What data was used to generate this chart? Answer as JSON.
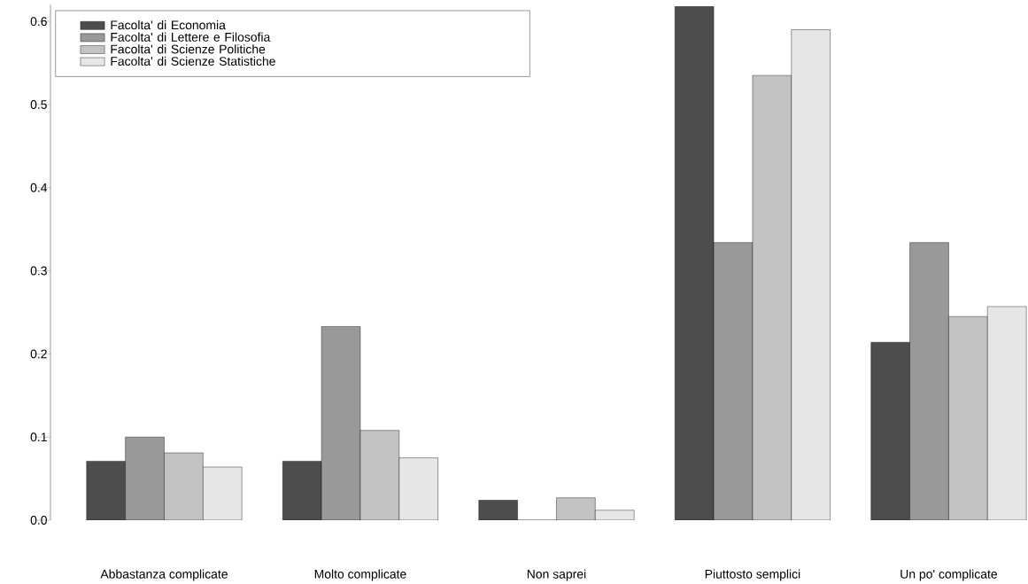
{
  "chart_data": {
    "type": "bar",
    "categories": [
      "Abbastanza complicate",
      "Molto complicate",
      "Non saprei",
      "Piuttosto semplici",
      "Un po' complicate"
    ],
    "series": [
      {
        "name": "Facolta' di Economia",
        "color": "#4d4d4d",
        "values": [
          0.071,
          0.071,
          0.024,
          0.618,
          0.214
        ]
      },
      {
        "name": "Facolta' di Lettere e Filosofia",
        "color": "#999999",
        "values": [
          0.1,
          0.233,
          0,
          0.334,
          0.334
        ]
      },
      {
        "name": "Facolta' di Scienze Politiche",
        "color": "#c3c3c3",
        "values": [
          0.081,
          0.108,
          0.027,
          0.535,
          0.245
        ]
      },
      {
        "name": "Facolta' di Scienze Statistiche",
        "color": "#e6e6e6",
        "values": [
          0.064,
          0.075,
          0.012,
          0.59,
          0.257
        ]
      }
    ],
    "ylim": [
      0,
      0.62
    ],
    "yticks": [
      {
        "value": 0,
        "label": "0.0"
      },
      0.1,
      0.2,
      0.3,
      0.4,
      0.5,
      0.6
    ],
    "legend": "top left"
  }
}
